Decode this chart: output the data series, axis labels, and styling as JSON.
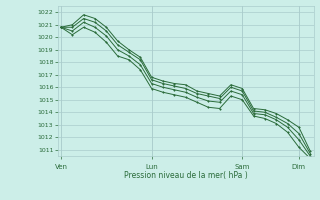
{
  "bg_color": "#cceee8",
  "grid_color": "#aacccc",
  "line_color": "#2a6b3a",
  "marker_color": "#2a6b3a",
  "xlabel": "Pression niveau de la mer( hPa )",
  "ylim": [
    1010.5,
    1022.5
  ],
  "yticks": [
    1011,
    1012,
    1013,
    1014,
    1015,
    1016,
    1017,
    1018,
    1019,
    1020,
    1021,
    1022
  ],
  "xtick_labels": [
    "Ven",
    "Lun",
    "Sam",
    "Dim"
  ],
  "xtick_positions": [
    0,
    8,
    16,
    21
  ],
  "xlim": [
    -0.3,
    22.3
  ],
  "series1": [
    1020.8,
    1021.0,
    1021.8,
    1021.5,
    1020.8,
    1019.7,
    1019.0,
    1018.4,
    1016.8,
    1016.5,
    1016.3,
    1016.2,
    1015.7,
    1015.5,
    1015.3,
    1016.2,
    1015.9,
    1014.3,
    1014.2,
    1013.9,
    1013.4,
    1012.8,
    1010.9
  ],
  "series2": [
    1020.8,
    1020.8,
    1021.5,
    1021.2,
    1020.5,
    1019.4,
    1018.8,
    1018.2,
    1016.6,
    1016.3,
    1016.1,
    1015.9,
    1015.5,
    1015.3,
    1015.1,
    1016.0,
    1015.7,
    1014.1,
    1014.0,
    1013.6,
    1013.1,
    1012.3,
    1010.7
  ],
  "series3": [
    1020.8,
    1020.5,
    1021.2,
    1020.8,
    1020.1,
    1019.0,
    1018.5,
    1017.8,
    1016.3,
    1016.0,
    1015.8,
    1015.6,
    1015.2,
    1014.9,
    1014.8,
    1015.7,
    1015.4,
    1013.9,
    1013.8,
    1013.4,
    1012.8,
    1011.8,
    1010.5
  ],
  "series4": [
    1020.8,
    1020.2,
    1020.8,
    1020.4,
    1019.6,
    1018.5,
    1018.2,
    1017.4,
    1015.9,
    1015.6,
    1015.4,
    1015.2,
    1014.8,
    1014.4,
    1014.3,
    1015.3,
    1015.0,
    1013.7,
    1013.5,
    1013.1,
    1012.4,
    1011.2,
    1010.3
  ]
}
